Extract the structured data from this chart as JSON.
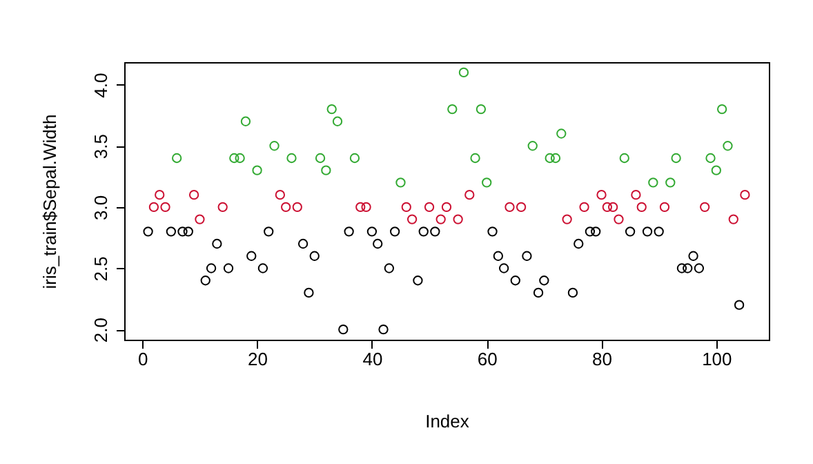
{
  "chart_data": {
    "type": "scatter",
    "xlabel": "Index",
    "ylabel": "iris_train$Sepal.Width",
    "xlim": [
      -3.16,
      109.16
    ],
    "ylim": [
      1.916,
      4.184
    ],
    "xticks": [
      0,
      20,
      40,
      60,
      80,
      100
    ],
    "yticks": [
      {
        "value": 2.0,
        "label": "2.0"
      },
      2.5,
      {
        "value": 3.0,
        "label": "3.0"
      },
      3.5,
      {
        "value": 4.0,
        "label": "4.0"
      }
    ],
    "grid": false,
    "marker": "circle",
    "series": [
      {
        "color": "#000000",
        "x": [
          1,
          5,
          7,
          8,
          11,
          12,
          13,
          15,
          19,
          21,
          22,
          28,
          29,
          30,
          35,
          36,
          40,
          41,
          42,
          43,
          44,
          48,
          49,
          51,
          61,
          62,
          63,
          65,
          67,
          69,
          70,
          75,
          76,
          78,
          79,
          85,
          88,
          90,
          94,
          95,
          96,
          97,
          104
        ],
        "values": [
          2.8,
          2.8,
          2.8,
          2.8,
          2.4,
          2.5,
          2.7,
          2.5,
          2.6,
          2.5,
          2.8,
          2.7,
          2.3,
          2.6,
          2.0,
          2.8,
          2.8,
          2.7,
          2.0,
          2.5,
          2.8,
          2.4,
          2.8,
          2.8,
          2.8,
          2.6,
          2.5,
          2.4,
          2.6,
          2.3,
          2.4,
          2.3,
          2.7,
          2.8,
          2.8,
          2.8,
          2.8,
          2.8,
          2.5,
          2.5,
          2.6,
          2.5,
          2.2
        ]
      },
      {
        "color": "#cc1133",
        "x": [
          2,
          3,
          4,
          9,
          10,
          14,
          24,
          25,
          27,
          38,
          39,
          46,
          47,
          50,
          52,
          53,
          55,
          57,
          64,
          66,
          74,
          77,
          80,
          81,
          82,
          83,
          86,
          87,
          91,
          98,
          103,
          105
        ],
        "values": [
          3.0,
          3.1,
          3.0,
          3.1,
          2.9,
          3.0,
          3.1,
          3.0,
          3.0,
          3.0,
          3.0,
          3.0,
          2.9,
          3.0,
          2.9,
          3.0,
          2.9,
          3.1,
          3.0,
          3.0,
          2.9,
          3.0,
          3.1,
          3.0,
          3.0,
          2.9,
          3.1,
          3.0,
          3.0,
          3.0,
          2.9,
          3.1
        ]
      },
      {
        "color": "#33aa33",
        "x": [
          6,
          16,
          17,
          18,
          20,
          23,
          26,
          31,
          32,
          33,
          34,
          37,
          45,
          54,
          56,
          58,
          59,
          60,
          68,
          71,
          72,
          73,
          84,
          89,
          92,
          93,
          99,
          100,
          101,
          102
        ],
        "values": [
          3.4,
          3.4,
          3.4,
          3.7,
          3.3,
          3.5,
          3.4,
          3.4,
          3.3,
          3.8,
          3.7,
          3.4,
          3.2,
          3.8,
          4.1,
          3.4,
          3.8,
          3.2,
          3.5,
          3.4,
          3.4,
          3.6,
          3.4,
          3.2,
          3.2,
          3.4,
          3.4,
          3.3,
          3.8,
          3.5
        ]
      }
    ]
  }
}
